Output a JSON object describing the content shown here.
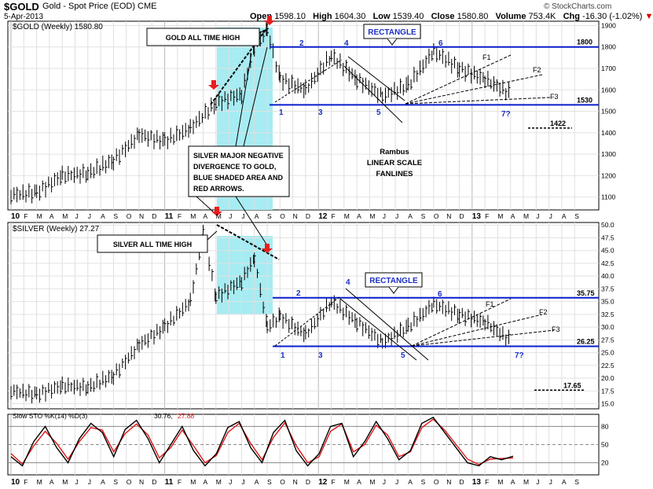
{
  "header": {
    "symbol": "$GOLD",
    "description": "Gold - Spot Price (EOD)",
    "exchange": "CME",
    "date": "5-Apr-2013",
    "open_label": "Open",
    "open": "1598.10",
    "high_label": "High",
    "high": "1604.30",
    "low_label": "Low",
    "low": "1539.40",
    "close_label": "Close",
    "close": "1580.80",
    "volume_label": "Volume",
    "volume": "753.4K",
    "chg_label": "Chg",
    "chg": "-16.30 (-1.02%)",
    "watermark": "© StockCharts.com"
  },
  "colors": {
    "band": "#a6ecf2",
    "level": "#0a1ecc",
    "label": "#1c2fc2",
    "arrow": "#e61e1e",
    "sto_k": "#000000",
    "sto_d": "#e01515"
  },
  "x_axis": {
    "labels": [
      {
        "t": "10",
        "i": 0,
        "bold": true
      },
      {
        "t": "F",
        "i": 1
      },
      {
        "t": "M",
        "i": 2
      },
      {
        "t": "A",
        "i": 3
      },
      {
        "t": "M",
        "i": 4
      },
      {
        "t": "J",
        "i": 5
      },
      {
        "t": "J",
        "i": 6
      },
      {
        "t": "A",
        "i": 7
      },
      {
        "t": "S",
        "i": 8
      },
      {
        "t": "O",
        "i": 9
      },
      {
        "t": "N",
        "i": 10
      },
      {
        "t": "D",
        "i": 11
      },
      {
        "t": "11",
        "i": 12,
        "bold": true
      },
      {
        "t": "F",
        "i": 13
      },
      {
        "t": "M",
        "i": 14
      },
      {
        "t": "A",
        "i": 15
      },
      {
        "t": "M",
        "i": 16
      },
      {
        "t": "J",
        "i": 17
      },
      {
        "t": "J",
        "i": 18
      },
      {
        "t": "A",
        "i": 19
      },
      {
        "t": "S",
        "i": 20
      },
      {
        "t": "O",
        "i": 21
      },
      {
        "t": "N",
        "i": 22
      },
      {
        "t": "D",
        "i": 23
      },
      {
        "t": "12",
        "i": 24,
        "bold": true
      },
      {
        "t": "F",
        "i": 25
      },
      {
        "t": "M",
        "i": 26
      },
      {
        "t": "A",
        "i": 27
      },
      {
        "t": "M",
        "i": 28
      },
      {
        "t": "J",
        "i": 29
      },
      {
        "t": "J",
        "i": 30
      },
      {
        "t": "A",
        "i": 31
      },
      {
        "t": "S",
        "i": 32
      },
      {
        "t": "O",
        "i": 33
      },
      {
        "t": "N",
        "i": 34
      },
      {
        "t": "D",
        "i": 35
      },
      {
        "t": "13",
        "i": 36,
        "bold": true
      },
      {
        "t": "F",
        "i": 37
      },
      {
        "t": "M",
        "i": 38
      },
      {
        "t": "A",
        "i": 39
      },
      {
        "t": "M",
        "i": 40
      },
      {
        "t": "J",
        "i": 41
      },
      {
        "t": "J",
        "i": 42
      },
      {
        "t": "A",
        "i": 43
      },
      {
        "t": "S",
        "i": 44
      }
    ]
  },
  "chart_data": [
    {
      "type": "line",
      "title": "$GOLD (Weekly) 1580.80",
      "x": [
        "2010-01",
        "2010-03",
        "2010-05",
        "2010-07",
        "2010-09",
        "2010-11",
        "2011-01",
        "2011-03",
        "2011-05",
        "2011-07",
        "2011-08",
        "2011-09",
        "2011-10",
        "2011-12",
        "2012-02",
        "2012-04",
        "2012-06",
        "2012-08",
        "2012-10",
        "2012-12",
        "2013-02",
        "2013-04"
      ],
      "series": [
        {
          "values": [
            1110,
            1120,
            1200,
            1210,
            1270,
            1390,
            1360,
            1420,
            1540,
            1580,
            1800,
            1880,
            1650,
            1600,
            1760,
            1650,
            1570,
            1620,
            1780,
            1700,
            1650,
            1580
          ]
        }
      ],
      "ylim": [
        1040,
        1920
      ],
      "y_ticks": [
        1100,
        1200,
        1300,
        1400,
        1500,
        1600,
        1700,
        1800,
        1900
      ],
      "levels": [
        {
          "label": "1800",
          "value": 1800
        },
        {
          "label": "1530",
          "value": 1530
        },
        {
          "label": "1422",
          "value": 1422
        }
      ],
      "wave_labels": [
        "1",
        "2",
        "3",
        "4",
        "5",
        "6",
        "7?"
      ],
      "fan_labels": [
        "F1",
        "F2",
        "F3"
      ],
      "annotations": {
        "rectangle": "RECTANGLE",
        "all_time_high": "GOLD ALL TIME HIGH",
        "silver_note": [
          "SILVER MAJOR NEGATIVE",
          "DIVERGENCE TO GOLD,",
          "BLUE SHADED AREA AND",
          "RED ARROWS."
        ],
        "rambus": [
          "Rambus",
          "LINEAR SCALE",
          "FANLINES"
        ]
      }
    },
    {
      "type": "line",
      "title": "$SILVER (Weekly) 27.27",
      "x": [
        "2010-01",
        "2010-03",
        "2010-05",
        "2010-07",
        "2010-09",
        "2010-11",
        "2011-01",
        "2011-03",
        "2011-04",
        "2011-05",
        "2011-07",
        "2011-08",
        "2011-09",
        "2011-10",
        "2011-12",
        "2012-02",
        "2012-04",
        "2012-06",
        "2012-08",
        "2012-10",
        "2012-12",
        "2013-02",
        "2013-04"
      ],
      "series": [
        {
          "values": [
            17.5,
            16.8,
            18.5,
            18.2,
            20.5,
            26.5,
            30.0,
            35.0,
            48.5,
            36.0,
            39.0,
            43.5,
            30.0,
            32.0,
            28.5,
            35.0,
            31.0,
            27.0,
            30.0,
            34.5,
            32.5,
            31.0,
            27.3
          ]
        }
      ],
      "ylim": [
        14,
        50.5
      ],
      "y_ticks": [
        15.0,
        17.5,
        20.0,
        22.5,
        25.0,
        27.5,
        30.0,
        32.5,
        35.0,
        37.5,
        40.0,
        42.5,
        45.0,
        47.5,
        50.0
      ],
      "levels": [
        {
          "label": "35.75",
          "value": 35.75
        },
        {
          "label": "26.25",
          "value": 26.25
        },
        {
          "label": "17.65",
          "value": 17.65
        }
      ],
      "wave_labels": [
        "1",
        "2",
        "3",
        "4",
        "5",
        "6",
        "7?"
      ],
      "fan_labels": [
        "F1",
        "F2",
        "F3"
      ],
      "annotations": {
        "rectangle": "RECTANGLE",
        "all_time_high": "SILVER ALL TIME HIGH"
      }
    },
    {
      "type": "line",
      "title": "Slow STO %K(14) %D(3) 30.76, 27.88",
      "ylim": [
        0,
        100
      ],
      "y_ticks": [
        20,
        50,
        80
      ],
      "series": [
        {
          "name": "%K",
          "values": [
            30,
            15,
            55,
            80,
            45,
            20,
            60,
            85,
            70,
            30,
            75,
            90,
            60,
            20,
            50,
            80,
            40,
            15,
            35,
            78,
            88,
            45,
            20,
            70,
            90,
            40,
            15,
            35,
            80,
            85,
            30,
            55,
            88,
            60,
            25,
            40,
            85,
            95,
            70,
            45,
            20,
            15,
            30,
            25,
            30.76
          ]
        },
        {
          "name": "%D",
          "values": [
            35,
            18,
            48,
            72,
            52,
            26,
            55,
            78,
            74,
            38,
            68,
            84,
            66,
            28,
            45,
            74,
            48,
            20,
            32,
            70,
            85,
            52,
            25,
            62,
            86,
            48,
            20,
            30,
            72,
            84,
            38,
            50,
            82,
            66,
            30,
            38,
            78,
            92,
            74,
            50,
            26,
            17,
            26,
            27,
            27.88
          ]
        }
      ]
    }
  ]
}
